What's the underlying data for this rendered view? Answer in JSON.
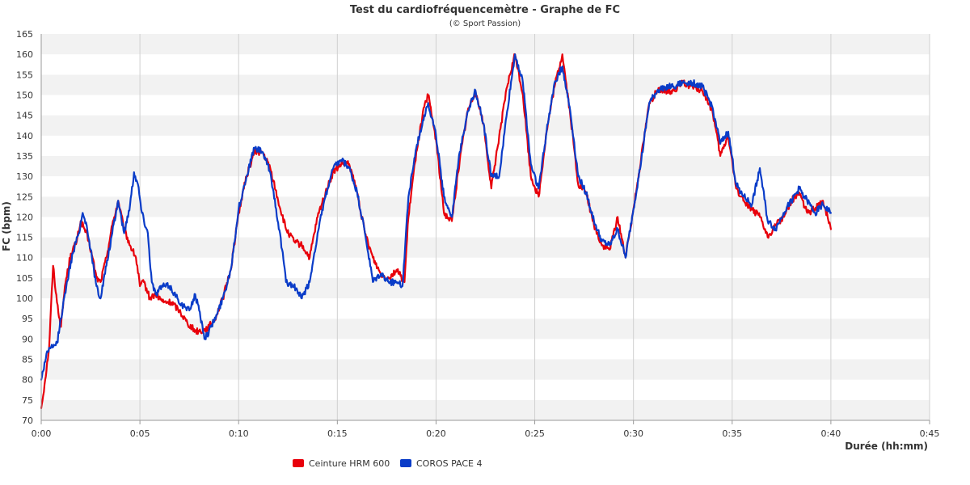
{
  "chart_data": {
    "type": "line",
    "title": "Test du cardiofréquencemètre - Graphe de FC",
    "subtitle": "(© Sport Passion)",
    "xlabel": "Durée (hh:mm)",
    "ylabel": "FC (bpm)",
    "xlim": [
      0,
      45
    ],
    "ylim": [
      70,
      165
    ],
    "x_ticks": [
      "0:00",
      "0:05",
      "0:10",
      "0:15",
      "0:20",
      "0:25",
      "0:30",
      "0:35",
      "0:40",
      "0:45"
    ],
    "y_ticks": [
      70,
      75,
      80,
      85,
      90,
      95,
      100,
      105,
      110,
      115,
      120,
      125,
      130,
      135,
      140,
      145,
      150,
      155,
      160,
      165
    ],
    "grid": "horizontal bands + vertical lines",
    "legend_position": "bottom-left",
    "series": [
      {
        "name": "Ceinture HRM 600",
        "color": "#e8000b",
        "points": [
          [
            0.0,
            73
          ],
          [
            0.2,
            80
          ],
          [
            0.4,
            88
          ],
          [
            0.6,
            108
          ],
          [
            0.8,
            99
          ],
          [
            1.0,
            93
          ],
          [
            1.2,
            103
          ],
          [
            1.5,
            111
          ],
          [
            1.8,
            114
          ],
          [
            2.0,
            119
          ],
          [
            2.2,
            117
          ],
          [
            2.4,
            114
          ],
          [
            2.6,
            110
          ],
          [
            2.8,
            105
          ],
          [
            3.0,
            104
          ],
          [
            3.3,
            110
          ],
          [
            3.6,
            118
          ],
          [
            3.9,
            124
          ],
          [
            4.2,
            117
          ],
          [
            4.5,
            113
          ],
          [
            4.8,
            110
          ],
          [
            5.0,
            103
          ],
          [
            5.2,
            104
          ],
          [
            5.5,
            100
          ],
          [
            5.8,
            101
          ],
          [
            6.2,
            99
          ],
          [
            6.6,
            99
          ],
          [
            7.0,
            97
          ],
          [
            7.4,
            94
          ],
          [
            7.8,
            92
          ],
          [
            8.2,
            92
          ],
          [
            8.5,
            93
          ],
          [
            8.8,
            95
          ],
          [
            9.2,
            100
          ],
          [
            9.6,
            107
          ],
          [
            10.0,
            121
          ],
          [
            10.4,
            130
          ],
          [
            10.8,
            136
          ],
          [
            11.2,
            136
          ],
          [
            11.6,
            132
          ],
          [
            12.0,
            124
          ],
          [
            12.4,
            117
          ],
          [
            12.8,
            114
          ],
          [
            13.2,
            113
          ],
          [
            13.6,
            110
          ],
          [
            14.0,
            120
          ],
          [
            14.4,
            126
          ],
          [
            14.8,
            131
          ],
          [
            15.2,
            133
          ],
          [
            15.6,
            133
          ],
          [
            16.0,
            126
          ],
          [
            16.4,
            116
          ],
          [
            16.8,
            110
          ],
          [
            17.2,
            106
          ],
          [
            17.6,
            105
          ],
          [
            18.0,
            107
          ],
          [
            18.4,
            104
          ],
          [
            18.6,
            120
          ],
          [
            19.0,
            136
          ],
          [
            19.4,
            147
          ],
          [
            19.6,
            150
          ],
          [
            20.0,
            139
          ],
          [
            20.4,
            121
          ],
          [
            20.8,
            119
          ],
          [
            21.2,
            134
          ],
          [
            21.6,
            146
          ],
          [
            22.0,
            151
          ],
          [
            22.4,
            143
          ],
          [
            22.8,
            127
          ],
          [
            23.2,
            140
          ],
          [
            23.6,
            152
          ],
          [
            24.0,
            160
          ],
          [
            24.4,
            150
          ],
          [
            24.8,
            130
          ],
          [
            25.2,
            125
          ],
          [
            25.6,
            141
          ],
          [
            26.0,
            152
          ],
          [
            26.4,
            160
          ],
          [
            26.8,
            145
          ],
          [
            27.2,
            128
          ],
          [
            27.6,
            126
          ],
          [
            28.0,
            118
          ],
          [
            28.4,
            113
          ],
          [
            28.8,
            112
          ],
          [
            29.2,
            120
          ],
          [
            29.6,
            110
          ],
          [
            30.0,
            122
          ],
          [
            30.4,
            135
          ],
          [
            30.8,
            148
          ],
          [
            31.2,
            151
          ],
          [
            31.6,
            151
          ],
          [
            32.0,
            151
          ],
          [
            32.5,
            153
          ],
          [
            33.0,
            152
          ],
          [
            33.5,
            151
          ],
          [
            34.0,
            146
          ],
          [
            34.4,
            135
          ],
          [
            34.8,
            140
          ],
          [
            35.2,
            127
          ],
          [
            35.6,
            124
          ],
          [
            36.0,
            122
          ],
          [
            36.4,
            120
          ],
          [
            36.8,
            115
          ],
          [
            37.2,
            118
          ],
          [
            37.6,
            120
          ],
          [
            38.0,
            124
          ],
          [
            38.4,
            126
          ],
          [
            38.8,
            121
          ],
          [
            39.2,
            122
          ],
          [
            39.6,
            124
          ],
          [
            40.0,
            117
          ]
        ]
      },
      {
        "name": "COROS PACE 4",
        "color": "#0a3cc8",
        "points": [
          [
            0.0,
            80
          ],
          [
            0.3,
            87
          ],
          [
            0.6,
            88
          ],
          [
            0.8,
            89
          ],
          [
            1.0,
            95
          ],
          [
            1.3,
            104
          ],
          [
            1.6,
            111
          ],
          [
            1.9,
            116
          ],
          [
            2.1,
            121
          ],
          [
            2.3,
            118
          ],
          [
            2.5,
            112
          ],
          [
            2.8,
            103
          ],
          [
            3.0,
            100
          ],
          [
            3.3,
            108
          ],
          [
            3.6,
            116
          ],
          [
            3.9,
            124
          ],
          [
            4.2,
            116
          ],
          [
            4.5,
            123
          ],
          [
            4.7,
            131
          ],
          [
            4.9,
            128
          ],
          [
            5.1,
            121
          ],
          [
            5.4,
            116
          ],
          [
            5.6,
            104
          ],
          [
            5.8,
            101
          ],
          [
            6.1,
            103
          ],
          [
            6.5,
            103
          ],
          [
            6.9,
            100
          ],
          [
            7.2,
            98
          ],
          [
            7.5,
            97
          ],
          [
            7.8,
            101
          ],
          [
            8.0,
            97
          ],
          [
            8.3,
            90
          ],
          [
            8.6,
            93
          ],
          [
            8.9,
            96
          ],
          [
            9.2,
            100
          ],
          [
            9.6,
            107
          ],
          [
            10.0,
            122
          ],
          [
            10.4,
            130
          ],
          [
            10.8,
            137
          ],
          [
            11.2,
            136
          ],
          [
            11.6,
            131
          ],
          [
            11.9,
            122
          ],
          [
            12.2,
            112
          ],
          [
            12.4,
            104
          ],
          [
            12.8,
            103
          ],
          [
            13.2,
            100
          ],
          [
            13.6,
            104
          ],
          [
            14.0,
            116
          ],
          [
            14.4,
            125
          ],
          [
            14.8,
            132
          ],
          [
            15.2,
            134
          ],
          [
            15.6,
            132
          ],
          [
            16.0,
            126
          ],
          [
            16.4,
            116
          ],
          [
            16.8,
            104
          ],
          [
            17.2,
            106
          ],
          [
            17.6,
            104
          ],
          [
            18.0,
            104
          ],
          [
            18.3,
            103
          ],
          [
            18.6,
            125
          ],
          [
            19.0,
            137
          ],
          [
            19.4,
            145
          ],
          [
            19.6,
            148
          ],
          [
            20.0,
            140
          ],
          [
            20.4,
            125
          ],
          [
            20.8,
            120
          ],
          [
            21.2,
            136
          ],
          [
            21.6,
            146
          ],
          [
            22.0,
            151
          ],
          [
            22.4,
            143
          ],
          [
            22.8,
            130
          ],
          [
            23.2,
            130
          ],
          [
            23.6,
            146
          ],
          [
            24.0,
            160
          ],
          [
            24.4,
            153
          ],
          [
            24.8,
            133
          ],
          [
            25.2,
            127
          ],
          [
            25.6,
            141
          ],
          [
            26.0,
            153
          ],
          [
            26.4,
            157
          ],
          [
            26.8,
            146
          ],
          [
            27.2,
            130
          ],
          [
            27.6,
            126
          ],
          [
            28.0,
            119
          ],
          [
            28.4,
            114
          ],
          [
            28.8,
            113
          ],
          [
            29.2,
            117
          ],
          [
            29.6,
            110
          ],
          [
            30.0,
            122
          ],
          [
            30.4,
            134
          ],
          [
            30.8,
            148
          ],
          [
            31.2,
            151
          ],
          [
            31.6,
            152
          ],
          [
            32.0,
            152
          ],
          [
            32.5,
            153
          ],
          [
            33.0,
            153
          ],
          [
            33.5,
            152
          ],
          [
            34.0,
            147
          ],
          [
            34.4,
            138
          ],
          [
            34.8,
            141
          ],
          [
            35.2,
            128
          ],
          [
            35.6,
            125
          ],
          [
            36.0,
            123
          ],
          [
            36.4,
            132
          ],
          [
            36.8,
            119
          ],
          [
            37.2,
            117
          ],
          [
            37.6,
            121
          ],
          [
            38.0,
            124
          ],
          [
            38.4,
            127
          ],
          [
            38.8,
            124
          ],
          [
            39.2,
            121
          ],
          [
            39.6,
            123
          ],
          [
            40.0,
            121
          ]
        ]
      }
    ]
  }
}
